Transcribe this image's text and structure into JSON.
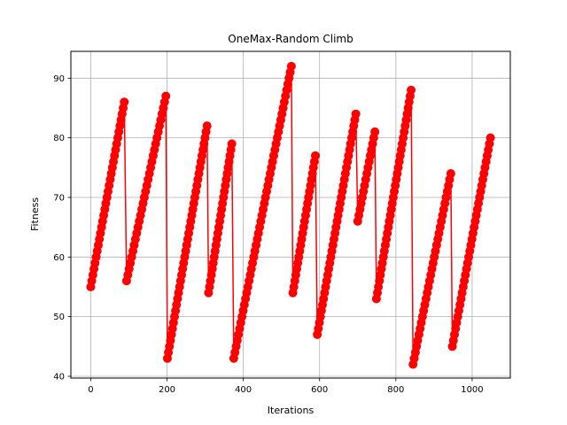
{
  "chart_data": {
    "type": "line",
    "title": "OneMax-Random Climb",
    "xlabel": "Iterations",
    "ylabel": "Fitness",
    "xlim": [
      -52,
      1100
    ],
    "ylim": [
      39.7,
      94.5
    ],
    "xticks": [
      0,
      200,
      400,
      600,
      800,
      1000
    ],
    "yticks": [
      40,
      50,
      60,
      70,
      80,
      90
    ],
    "grid": true,
    "marker": "circle",
    "color": "#ff0000",
    "segments": [
      {
        "x_start": 0,
        "y_start": 55,
        "x_end": 88,
        "y_end": 86
      },
      {
        "x_start": 94,
        "y_start": 56,
        "x_end": 197,
        "y_end": 87
      },
      {
        "x_start": 201,
        "y_start": 43,
        "x_end": 305,
        "y_end": 82
      },
      {
        "x_start": 309,
        "y_start": 54,
        "x_end": 370,
        "y_end": 79
      },
      {
        "x_start": 375,
        "y_start": 43,
        "x_end": 526,
        "y_end": 92
      },
      {
        "x_start": 530,
        "y_start": 54,
        "x_end": 589,
        "y_end": 77
      },
      {
        "x_start": 594,
        "y_start": 47,
        "x_end": 695,
        "y_end": 84
      },
      {
        "x_start": 700,
        "y_start": 66,
        "x_end": 745,
        "y_end": 81
      },
      {
        "x_start": 749,
        "y_start": 53,
        "x_end": 840,
        "y_end": 88
      },
      {
        "x_start": 845,
        "y_start": 42,
        "x_end": 944,
        "y_end": 74
      },
      {
        "x_start": 948,
        "y_start": 45,
        "x_end": 1048,
        "y_end": 80
      }
    ]
  }
}
